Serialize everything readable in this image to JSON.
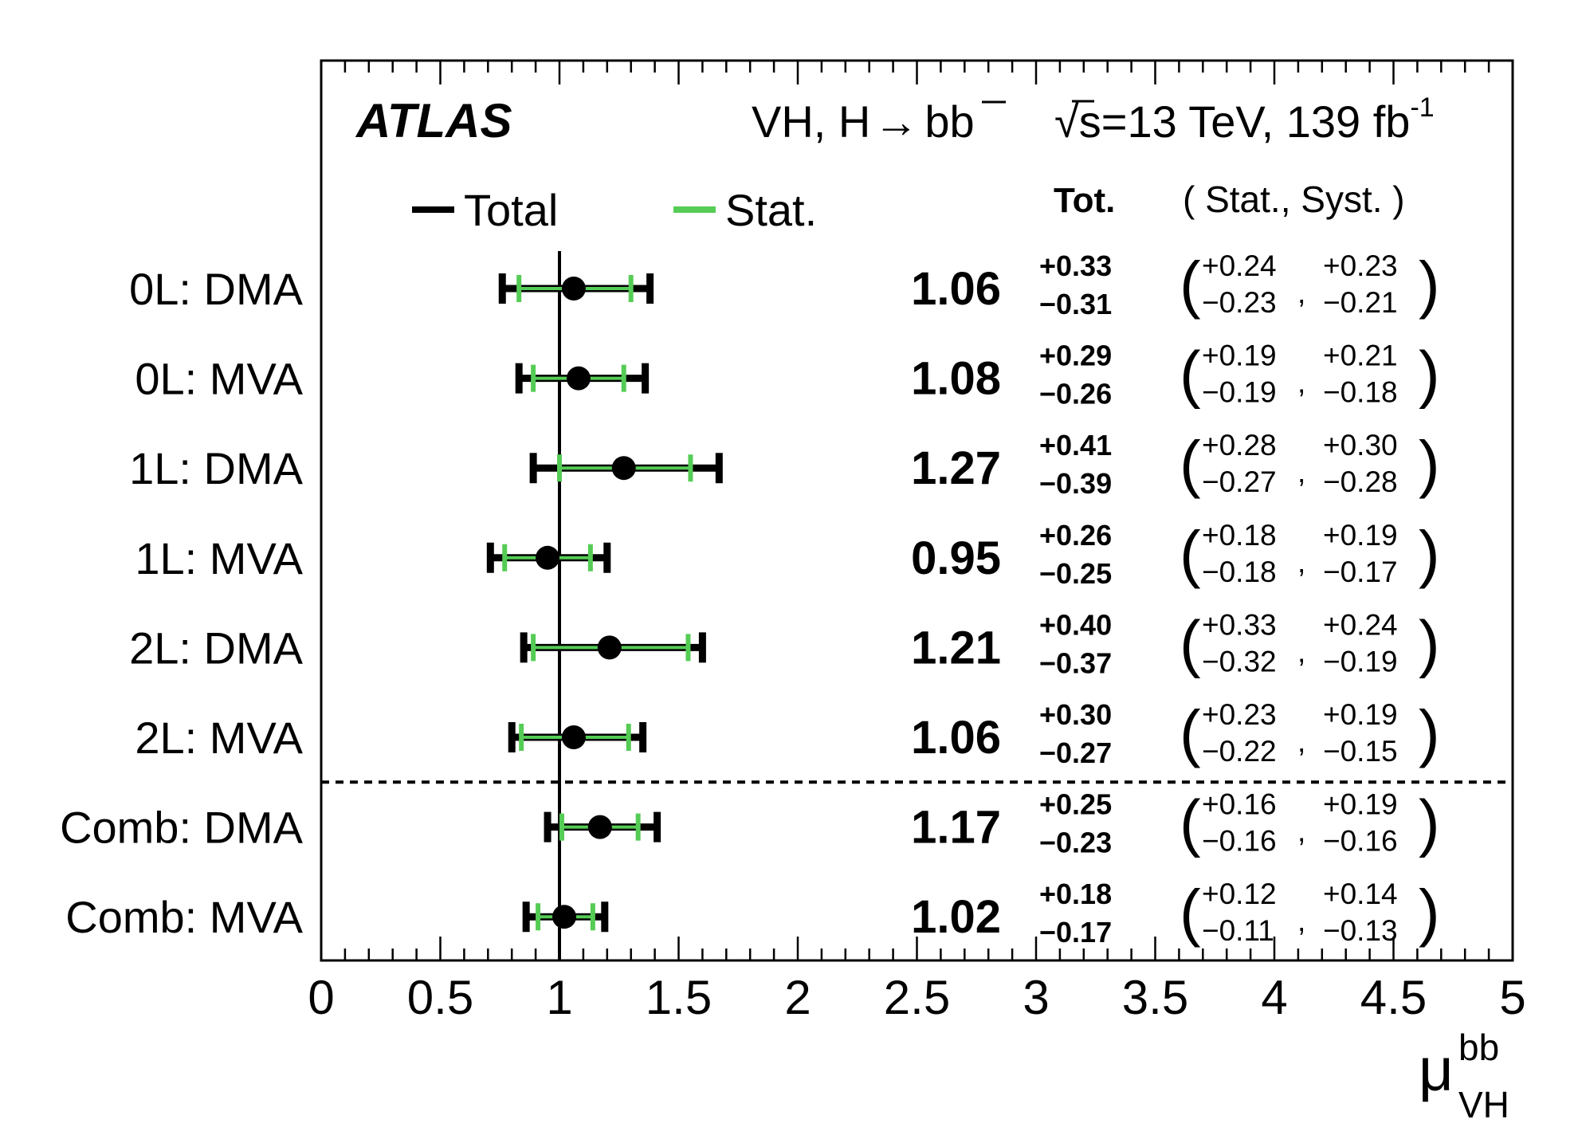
{
  "chart_data": {
    "type": "scatter",
    "experiment": "ATLAS",
    "process_label": {
      "main": "VH, H",
      "arrow": "→",
      "b1": "b",
      "b2": "b"
    },
    "energy_label": {
      "sqrt": "√",
      "s": "s",
      "text": "=13 TeV, 139 fb",
      "sup": "-1"
    },
    "legend": [
      {
        "label": "Total",
        "color": "#000000"
      },
      {
        "label": "Stat.",
        "color": "#55cc55"
      }
    ],
    "column_headers": {
      "tot": "Tot.",
      "stat_syst": "( Stat., Syst. )"
    },
    "xlabel": {
      "symbol": "μ",
      "sup": "bb",
      "sub": "VH"
    },
    "xlim": [
      0,
      5
    ],
    "xticks": [
      "0",
      "0.5",
      "1",
      "1.5",
      "2",
      "2.5",
      "3",
      "3.5",
      "4",
      "4.5",
      "5"
    ],
    "reference_line": 1,
    "separator_after_row": 6,
    "rows": [
      {
        "label": "0L: DMA",
        "value": 1.06,
        "value_text": "1.06",
        "tot_up": "+0.33",
        "tot_dn": "−0.31",
        "stat_up": "+0.24",
        "stat_dn": "−0.23",
        "syst_up": "+0.23",
        "syst_dn": "−0.21",
        "tot_lo": 0.75,
        "tot_hi": 1.39,
        "stat_lo": 0.83,
        "stat_hi": 1.3
      },
      {
        "label": "0L: MVA",
        "value": 1.08,
        "value_text": "1.08",
        "tot_up": "+0.29",
        "tot_dn": "−0.26",
        "stat_up": "+0.19",
        "stat_dn": "−0.19",
        "syst_up": "+0.21",
        "syst_dn": "−0.18",
        "tot_lo": 0.82,
        "tot_hi": 1.37,
        "stat_lo": 0.89,
        "stat_hi": 1.27
      },
      {
        "label": "1L: DMA",
        "value": 1.27,
        "value_text": "1.27",
        "tot_up": "+0.41",
        "tot_dn": "−0.39",
        "stat_up": "+0.28",
        "stat_dn": "−0.27",
        "syst_up": "+0.30",
        "syst_dn": "−0.28",
        "tot_lo": 0.88,
        "tot_hi": 1.68,
        "stat_lo": 1.0,
        "stat_hi": 1.55
      },
      {
        "label": "1L: MVA",
        "value": 0.95,
        "value_text": "0.95",
        "tot_up": "+0.26",
        "tot_dn": "−0.25",
        "stat_up": "+0.18",
        "stat_dn": "−0.18",
        "syst_up": "+0.19",
        "syst_dn": "−0.17",
        "tot_lo": 0.7,
        "tot_hi": 1.21,
        "stat_lo": 0.77,
        "stat_hi": 1.13
      },
      {
        "label": "2L: DMA",
        "value": 1.21,
        "value_text": "1.21",
        "tot_up": "+0.40",
        "tot_dn": "−0.37",
        "stat_up": "+0.33",
        "stat_dn": "−0.32",
        "syst_up": "+0.24",
        "syst_dn": "−0.19",
        "tot_lo": 0.84,
        "tot_hi": 1.61,
        "stat_lo": 0.89,
        "stat_hi": 1.54
      },
      {
        "label": "2L: MVA",
        "value": 1.06,
        "value_text": "1.06",
        "tot_up": "+0.30",
        "tot_dn": "−0.27",
        "stat_up": "+0.23",
        "stat_dn": "−0.22",
        "syst_up": "+0.19",
        "syst_dn": "−0.15",
        "tot_lo": 0.79,
        "tot_hi": 1.36,
        "stat_lo": 0.84,
        "stat_hi": 1.29
      },
      {
        "label": "Comb: DMA",
        "value": 1.17,
        "value_text": "1.17",
        "tot_up": "+0.25",
        "tot_dn": "−0.23",
        "stat_up": "+0.16",
        "stat_dn": "−0.16",
        "syst_up": "+0.19",
        "syst_dn": "−0.16",
        "tot_lo": 0.94,
        "tot_hi": 1.42,
        "stat_lo": 1.01,
        "stat_hi": 1.33
      },
      {
        "label": "Comb: MVA",
        "value": 1.02,
        "value_text": "1.02",
        "tot_up": "+0.18",
        "tot_dn": "−0.17",
        "stat_up": "+0.12",
        "stat_dn": "−0.11",
        "syst_up": "+0.14",
        "syst_dn": "−0.13",
        "tot_lo": 0.85,
        "tot_hi": 1.2,
        "stat_lo": 0.91,
        "stat_hi": 1.14
      }
    ]
  }
}
